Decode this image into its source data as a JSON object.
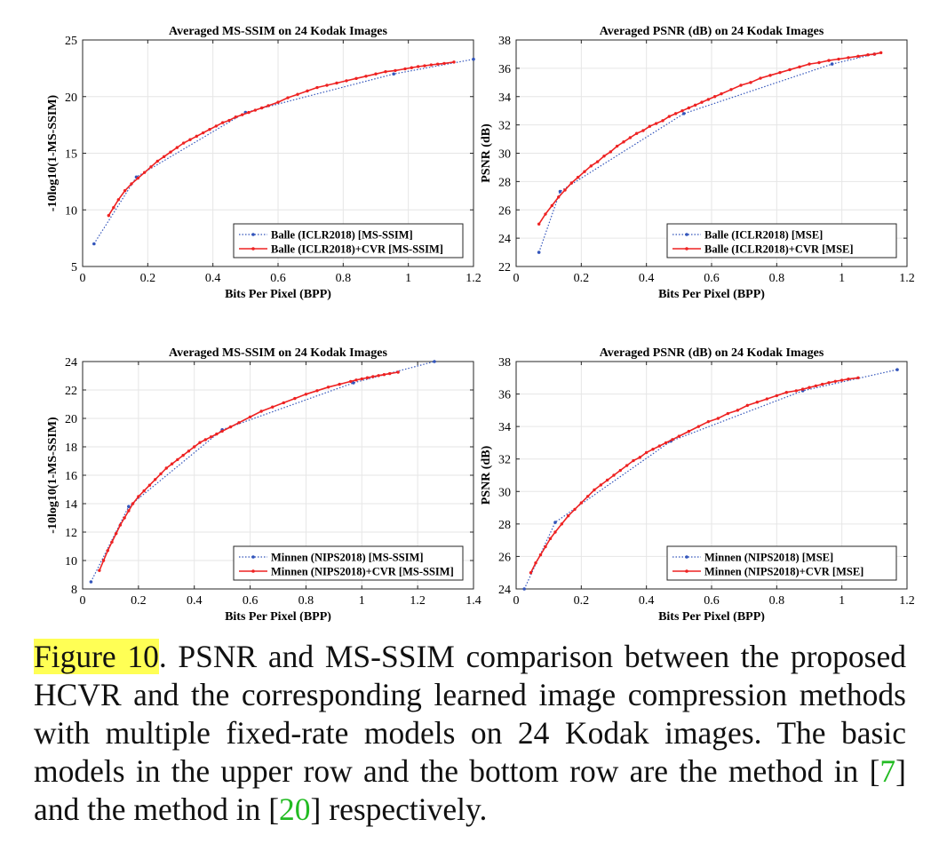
{
  "chart_data": [
    {
      "type": "line",
      "title": "Averaged MS-SSIM on 24 Kodak Images",
      "xlabel": "Bits Per Pixel (BPP)",
      "ylabel": "-10log10(1-MS-SSIM)",
      "xlim": [
        0,
        1.2
      ],
      "ylim": [
        5,
        25
      ],
      "xticks": [
        0,
        0.2,
        0.4,
        0.6,
        0.8,
        1,
        1.2
      ],
      "yticks": [
        5,
        10,
        15,
        20,
        25
      ],
      "grid": true,
      "legend": "bottom-right",
      "series": [
        {
          "name": "Balle (ICLR2018) [MS-SSIM]",
          "color": "#3355bb",
          "style": "dotted",
          "x": [
            0.035,
            0.165,
            0.5,
            0.955,
            1.2
          ],
          "y": [
            7.0,
            12.9,
            18.6,
            22.0,
            23.3
          ]
        },
        {
          "name": "Balle (ICLR2018)+CVR [MS-SSIM]",
          "color": "#ee2222",
          "style": "solid",
          "x": [
            0.08,
            0.095,
            0.11,
            0.13,
            0.15,
            0.17,
            0.19,
            0.21,
            0.23,
            0.25,
            0.27,
            0.29,
            0.31,
            0.33,
            0.35,
            0.37,
            0.39,
            0.41,
            0.43,
            0.45,
            0.47,
            0.49,
            0.51,
            0.53,
            0.55,
            0.57,
            0.6,
            0.63,
            0.66,
            0.69,
            0.72,
            0.75,
            0.78,
            0.81,
            0.84,
            0.87,
            0.9,
            0.93,
            0.96,
            0.99,
            1.01,
            1.03,
            1.05,
            1.07,
            1.09,
            1.11,
            1.14
          ],
          "y": [
            9.5,
            10.2,
            10.9,
            11.7,
            12.3,
            12.8,
            13.3,
            13.8,
            14.3,
            14.7,
            15.1,
            15.5,
            15.9,
            16.2,
            16.5,
            16.8,
            17.1,
            17.4,
            17.7,
            17.9,
            18.2,
            18.4,
            18.6,
            18.8,
            19.0,
            19.2,
            19.5,
            19.9,
            20.2,
            20.5,
            20.8,
            21.0,
            21.2,
            21.4,
            21.6,
            21.8,
            22.0,
            22.2,
            22.3,
            22.45,
            22.55,
            22.65,
            22.72,
            22.8,
            22.87,
            22.93,
            23.05
          ]
        }
      ]
    },
    {
      "type": "line",
      "title": "Averaged PSNR (dB) on 24 Kodak Images",
      "xlabel": "Bits Per Pixel (BPP)",
      "ylabel": "PSNR (dB)",
      "xlim": [
        0,
        1.2
      ],
      "ylim": [
        22,
        38
      ],
      "xticks": [
        0,
        0.2,
        0.4,
        0.6,
        0.8,
        1,
        1.2
      ],
      "yticks": [
        22,
        24,
        26,
        28,
        30,
        32,
        34,
        36,
        38
      ],
      "grid": true,
      "legend": "bottom-right",
      "series": [
        {
          "name": "Balle (ICLR2018) [MSE]",
          "color": "#3355bb",
          "style": "dotted",
          "x": [
            0.07,
            0.135,
            0.515,
            0.97,
            1.1
          ],
          "y": [
            23.0,
            27.3,
            32.8,
            36.3,
            37.0
          ]
        },
        {
          "name": "Balle (ICLR2018)+CVR [MSE]",
          "color": "#ee2222",
          "style": "solid",
          "x": [
            0.07,
            0.09,
            0.11,
            0.13,
            0.15,
            0.17,
            0.19,
            0.21,
            0.23,
            0.25,
            0.27,
            0.29,
            0.31,
            0.33,
            0.35,
            0.37,
            0.39,
            0.41,
            0.43,
            0.45,
            0.47,
            0.49,
            0.51,
            0.53,
            0.55,
            0.57,
            0.59,
            0.61,
            0.63,
            0.66,
            0.69,
            0.72,
            0.75,
            0.78,
            0.81,
            0.84,
            0.87,
            0.9,
            0.93,
            0.96,
            0.99,
            1.02,
            1.05,
            1.08,
            1.1,
            1.12
          ],
          "y": [
            25.0,
            25.7,
            26.3,
            26.9,
            27.4,
            27.9,
            28.3,
            28.7,
            29.1,
            29.4,
            29.8,
            30.1,
            30.5,
            30.8,
            31.1,
            31.4,
            31.6,
            31.9,
            32.1,
            32.3,
            32.6,
            32.8,
            33.0,
            33.2,
            33.4,
            33.6,
            33.8,
            34.0,
            34.2,
            34.5,
            34.8,
            35.0,
            35.3,
            35.5,
            35.7,
            35.9,
            36.1,
            36.3,
            36.4,
            36.55,
            36.65,
            36.75,
            36.85,
            36.95,
            37.0,
            37.1
          ]
        }
      ]
    },
    {
      "type": "line",
      "title": "Averaged MS-SSIM on 24 Kodak Images",
      "xlabel": "Bits Per Pixel (BPP)",
      "ylabel": "-10log10(1-MS-SSIM)",
      "xlim": [
        0,
        1.4
      ],
      "ylim": [
        8,
        24
      ],
      "xticks": [
        0,
        0.2,
        0.4,
        0.6,
        0.8,
        1,
        1.2,
        1.4
      ],
      "yticks": [
        8,
        10,
        12,
        14,
        16,
        18,
        20,
        22,
        24
      ],
      "grid": true,
      "legend": "bottom-right",
      "series": [
        {
          "name": "Minnen (NIPS2018) [MS-SSIM]",
          "color": "#3355bb",
          "style": "dotted",
          "x": [
            0.03,
            0.165,
            0.5,
            0.97,
            1.26
          ],
          "y": [
            8.5,
            13.8,
            19.2,
            22.5,
            24.0
          ]
        },
        {
          "name": "Minnen (NIPS2018)+CVR [MS-SSIM]",
          "color": "#ee2222",
          "style": "solid",
          "x": [
            0.06,
            0.075,
            0.09,
            0.105,
            0.12,
            0.135,
            0.15,
            0.165,
            0.18,
            0.2,
            0.22,
            0.24,
            0.26,
            0.28,
            0.3,
            0.32,
            0.34,
            0.36,
            0.38,
            0.4,
            0.42,
            0.44,
            0.46,
            0.48,
            0.5,
            0.53,
            0.56,
            0.6,
            0.64,
            0.68,
            0.72,
            0.76,
            0.8,
            0.84,
            0.88,
            0.92,
            0.96,
            0.98,
            1.0,
            1.02,
            1.04,
            1.06,
            1.08,
            1.1,
            1.13
          ],
          "y": [
            9.3,
            10.0,
            10.7,
            11.3,
            11.9,
            12.5,
            13.0,
            13.5,
            14.0,
            14.5,
            14.9,
            15.3,
            15.7,
            16.1,
            16.5,
            16.8,
            17.1,
            17.4,
            17.7,
            18.0,
            18.3,
            18.5,
            18.7,
            18.9,
            19.1,
            19.4,
            19.7,
            20.1,
            20.5,
            20.8,
            21.1,
            21.4,
            21.7,
            21.95,
            22.2,
            22.4,
            22.6,
            22.7,
            22.78,
            22.86,
            22.94,
            23.01,
            23.08,
            23.15,
            23.25
          ]
        }
      ]
    },
    {
      "type": "line",
      "title": "Averaged PSNR (dB) on 24 Kodak Images",
      "xlabel": "Bits Per Pixel (BPP)",
      "ylabel": "PSNR (dB)",
      "xlim": [
        0,
        1.2
      ],
      "ylim": [
        24,
        38
      ],
      "xticks": [
        0,
        0.2,
        0.4,
        0.6,
        0.8,
        1,
        1.2
      ],
      "yticks": [
        24,
        26,
        28,
        30,
        32,
        34,
        36,
        38
      ],
      "grid": true,
      "legend": "bottom-right",
      "series": [
        {
          "name": "Minnen (NIPS2018) [MSE]",
          "color": "#3355bb",
          "style": "dotted",
          "x": [
            0.025,
            0.12,
            0.475,
            0.88,
            1.17
          ],
          "y": [
            24.0,
            28.1,
            33.1,
            36.2,
            37.5
          ]
        },
        {
          "name": "Minnen (NIPS2018)+CVR [MSE]",
          "color": "#ee2222",
          "style": "solid",
          "x": [
            0.045,
            0.06,
            0.075,
            0.09,
            0.105,
            0.12,
            0.14,
            0.16,
            0.18,
            0.2,
            0.22,
            0.24,
            0.26,
            0.28,
            0.3,
            0.32,
            0.34,
            0.36,
            0.38,
            0.4,
            0.42,
            0.44,
            0.46,
            0.48,
            0.5,
            0.53,
            0.56,
            0.59,
            0.62,
            0.65,
            0.68,
            0.71,
            0.74,
            0.77,
            0.8,
            0.83,
            0.86,
            0.88,
            0.9,
            0.92,
            0.94,
            0.96,
            0.98,
            1.0,
            1.02,
            1.05
          ],
          "y": [
            25.0,
            25.6,
            26.1,
            26.6,
            27.1,
            27.5,
            28.0,
            28.5,
            28.9,
            29.3,
            29.7,
            30.1,
            30.4,
            30.7,
            31.0,
            31.3,
            31.6,
            31.9,
            32.1,
            32.4,
            32.6,
            32.8,
            33.0,
            33.2,
            33.4,
            33.7,
            34.0,
            34.3,
            34.5,
            34.8,
            35.0,
            35.3,
            35.5,
            35.7,
            35.9,
            36.1,
            36.2,
            36.3,
            36.4,
            36.5,
            36.6,
            36.7,
            36.78,
            36.85,
            36.92,
            37.0
          ]
        }
      ]
    }
  ],
  "caption": {
    "label": "Figure 10",
    "text_1": ". PSNR and MS-SSIM comparison between the proposed HCVR and the corresponding learned image compression methods with multiple fixed-rate models on 24 Kodak images. The basic models in the upper row and the bottom row are the method in [",
    "ref_1": "7",
    "text_2": "] and the method in [",
    "ref_2": "20",
    "text_3": "] respectively."
  }
}
